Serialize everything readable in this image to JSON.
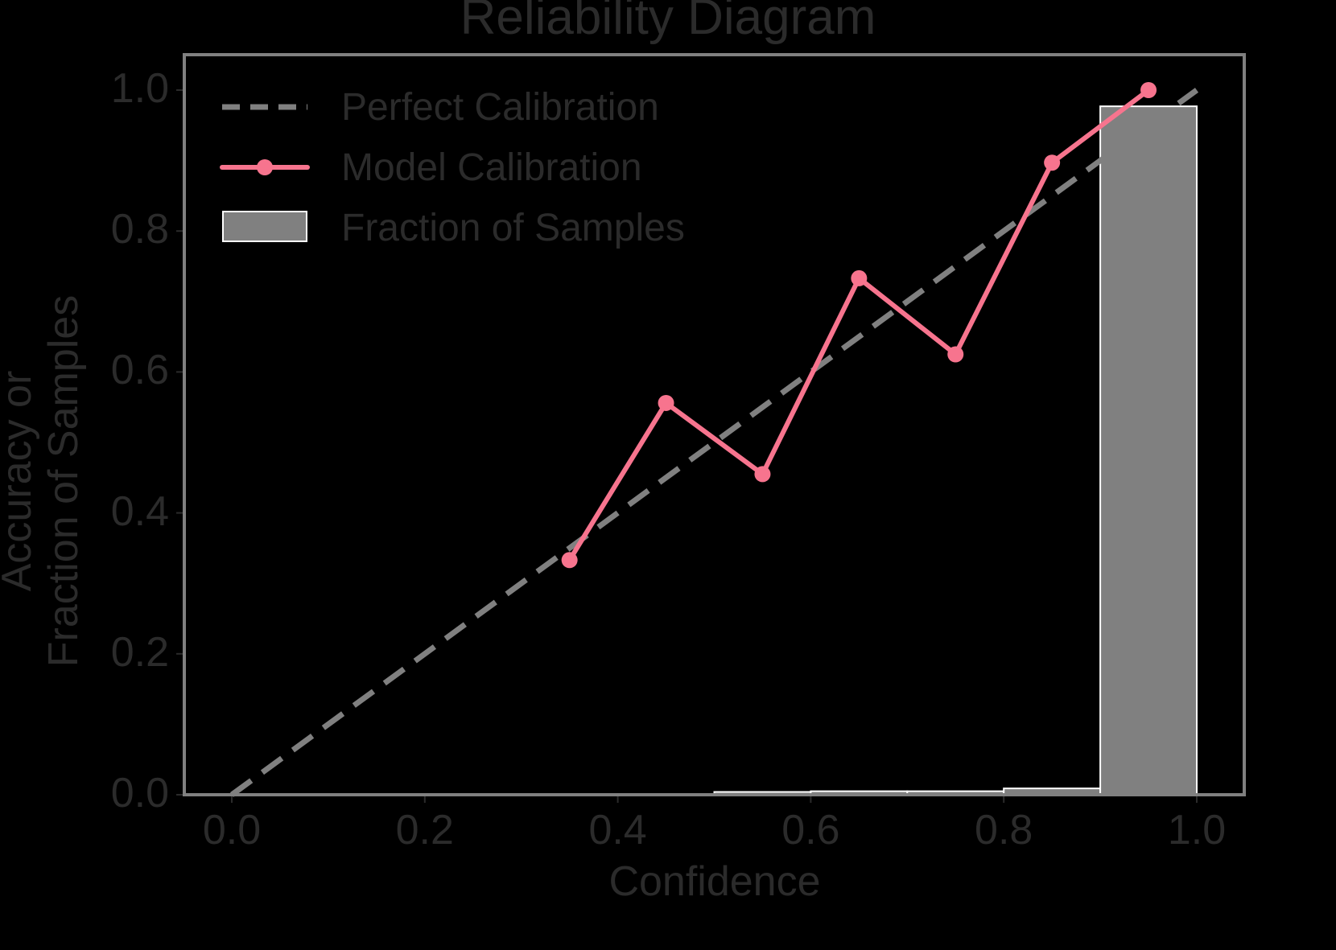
{
  "chart_data": {
    "type": "line",
    "title": "Reliability Diagram",
    "xlabel": "Confidence",
    "ylabel": "Accuracy or\nFraction of Samples",
    "ylabel_lines": [
      "Accuracy or",
      "Fraction of Samples"
    ],
    "xlim": [
      -0.05,
      1.05
    ],
    "ylim": [
      0.0,
      1.05
    ],
    "xticks": [
      "0.0",
      "0.2",
      "0.4",
      "0.6",
      "0.8",
      "1.0"
    ],
    "yticks": [
      "0.0",
      "0.2",
      "0.4",
      "0.6",
      "0.8",
      "1.0"
    ],
    "grid": false,
    "legend_position": "upper left",
    "legend": [
      "Perfect Calibration",
      "Model Calibration",
      "Fraction of Samples"
    ],
    "series": [
      {
        "name": "Perfect Calibration",
        "type": "line",
        "style": "dashed",
        "color": "#808080",
        "x": [
          0.0,
          1.0
        ],
        "y": [
          0.0,
          1.0
        ]
      },
      {
        "name": "Model Calibration",
        "type": "line",
        "marker": "circle",
        "color": "#f7748e",
        "x": [
          0.35,
          0.45,
          0.55,
          0.65,
          0.75,
          0.85,
          0.95
        ],
        "y": [
          0.333,
          0.556,
          0.455,
          0.733,
          0.625,
          0.897,
          1.0
        ]
      },
      {
        "name": "Fraction of Samples",
        "type": "bar",
        "color": "#808080",
        "edgecolor": "#ffffff",
        "bin_edges": [
          0.3,
          0.4,
          0.5,
          0.6,
          0.7,
          0.8,
          0.9,
          1.0
        ],
        "categories": [
          "0.3-0.4",
          "0.4-0.5",
          "0.5-0.6",
          "0.6-0.7",
          "0.7-0.8",
          "0.8-0.9",
          "0.9-1.0"
        ],
        "values": [
          0.0005,
          0.001,
          0.004,
          0.005,
          0.005,
          0.009,
          0.977
        ]
      }
    ]
  },
  "colors": {
    "background": "#000000",
    "axes_edge": "#808080",
    "text": "#2b2b2b",
    "model": "#f7748e",
    "perfect": "#808080",
    "bars": "#808080",
    "bar_edge": "#ffffff"
  }
}
